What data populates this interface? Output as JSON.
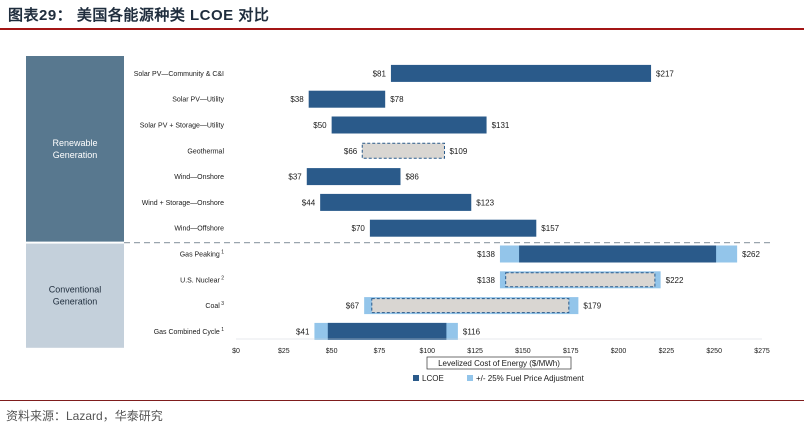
{
  "figure": {
    "title": "图表29：  美国各能源种类 LCOE 对比",
    "source": "资料来源：Lazard，华泰研究"
  },
  "colors": {
    "lcoe": "#2a5a8a",
    "fuel_adjust": "#93c5ea",
    "dashed_fill": "#d9d6d2",
    "renewable_panel": "#58788f",
    "conventional_panel": "#c4d0db"
  },
  "chart_data": {
    "type": "bar",
    "orientation": "horizontal-range",
    "xlabel": "Levelized Cost of Energy ($/MWh)",
    "xlim": [
      0,
      275
    ],
    "xticks": [
      0,
      25,
      50,
      75,
      100,
      125,
      150,
      175,
      200,
      225,
      250,
      275
    ],
    "xtick_labels": [
      "$0",
      "$25",
      "$50",
      "$75",
      "$100",
      "$125",
      "$150",
      "$175",
      "$200",
      "$225",
      "$250",
      "$275"
    ],
    "groups": [
      {
        "name": "Renewable Generation",
        "line1": "Renewable",
        "line2": "Generation"
      },
      {
        "name": "Conventional Generation",
        "line1": "Conventional",
        "line2": "Generation"
      }
    ],
    "legend": [
      "LCOE",
      "+/- 25% Fuel Price Adjustment"
    ],
    "series": [
      {
        "name": "Solar PV—Community & C&I",
        "sup": "",
        "group": "Renewable Generation",
        "low": 81,
        "high": 217,
        "low_label": "$81",
        "high_label": "$217",
        "style": "solid"
      },
      {
        "name": "Solar PV—Utility",
        "sup": "",
        "group": "Renewable Generation",
        "low": 38,
        "high": 78,
        "low_label": "$38",
        "high_label": "$78",
        "style": "solid"
      },
      {
        "name": "Solar PV + Storage—Utility",
        "sup": "",
        "group": "Renewable Generation",
        "low": 50,
        "high": 131,
        "low_label": "$50",
        "high_label": "$131",
        "style": "solid"
      },
      {
        "name": "Geothermal",
        "sup": "",
        "group": "Renewable Generation",
        "low": 66,
        "high": 109,
        "low_label": "$66",
        "high_label": "$109",
        "style": "dashed"
      },
      {
        "name": "Wind—Onshore",
        "sup": "",
        "group": "Renewable Generation",
        "low": 37,
        "high": 86,
        "low_label": "$37",
        "high_label": "$86",
        "style": "solid"
      },
      {
        "name": "Wind + Storage—Onshore",
        "sup": "",
        "group": "Renewable Generation",
        "low": 44,
        "high": 123,
        "low_label": "$44",
        "high_label": "$123",
        "style": "solid"
      },
      {
        "name": "Wind—Offshore",
        "sup": "",
        "group": "Renewable Generation",
        "low": 70,
        "high": 157,
        "low_label": "$70",
        "high_label": "$157",
        "style": "solid"
      },
      {
        "name": "Gas Peaking",
        "sup": "1",
        "group": "Conventional Generation",
        "low": 138,
        "high": 262,
        "low_label": "$138",
        "high_label": "$262",
        "style": "solid",
        "lcoe_range": [
          148,
          251
        ]
      },
      {
        "name": "U.S. Nuclear",
        "sup": "2",
        "group": "Conventional Generation",
        "low": 138,
        "high": 222,
        "low_label": "$138",
        "high_label": "$222",
        "style": "dashed",
        "lcoe_range": [
          141,
          219
        ]
      },
      {
        "name": "Coal",
        "sup": "3",
        "group": "Conventional Generation",
        "low": 67,
        "high": 179,
        "low_label": "$67",
        "high_label": "$179",
        "style": "dashed",
        "lcoe_range": [
          71,
          174
        ]
      },
      {
        "name": "Gas Combined Cycle",
        "sup": "1",
        "group": "Conventional Generation",
        "low": 41,
        "high": 116,
        "low_label": "$41",
        "high_label": "$116",
        "style": "solid",
        "lcoe_range": [
          48,
          110
        ]
      }
    ]
  }
}
